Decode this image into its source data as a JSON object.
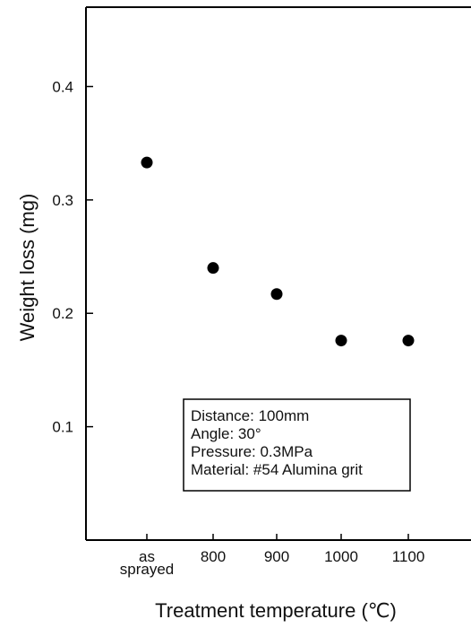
{
  "chart_data": {
    "type": "scatter",
    "title": "",
    "xlabel": "Treatment temperature (℃)",
    "ylabel": "Weight loss (mg)",
    "categories": [
      "as\nsprayed",
      "800",
      "900",
      "1000",
      "1100"
    ],
    "values": [
      0.333,
      0.24,
      0.217,
      0.176,
      0.176
    ],
    "ylim": [
      0.0,
      0.47
    ],
    "yticks": [
      0.1,
      0.2,
      0.3,
      0.4
    ],
    "ytick_labels": [
      "0.1",
      "0.2",
      "0.3",
      "0.4"
    ],
    "grid": false,
    "legend": "none",
    "annotation": {
      "lines": [
        "Distance: 100mm",
        "Angle: 30°",
        "Pressure: 0.3MPa",
        "Material: #54 Alumina grit"
      ]
    }
  },
  "colors": {
    "marker": "#000000",
    "axis": "#000000",
    "background": "#ffffff"
  }
}
